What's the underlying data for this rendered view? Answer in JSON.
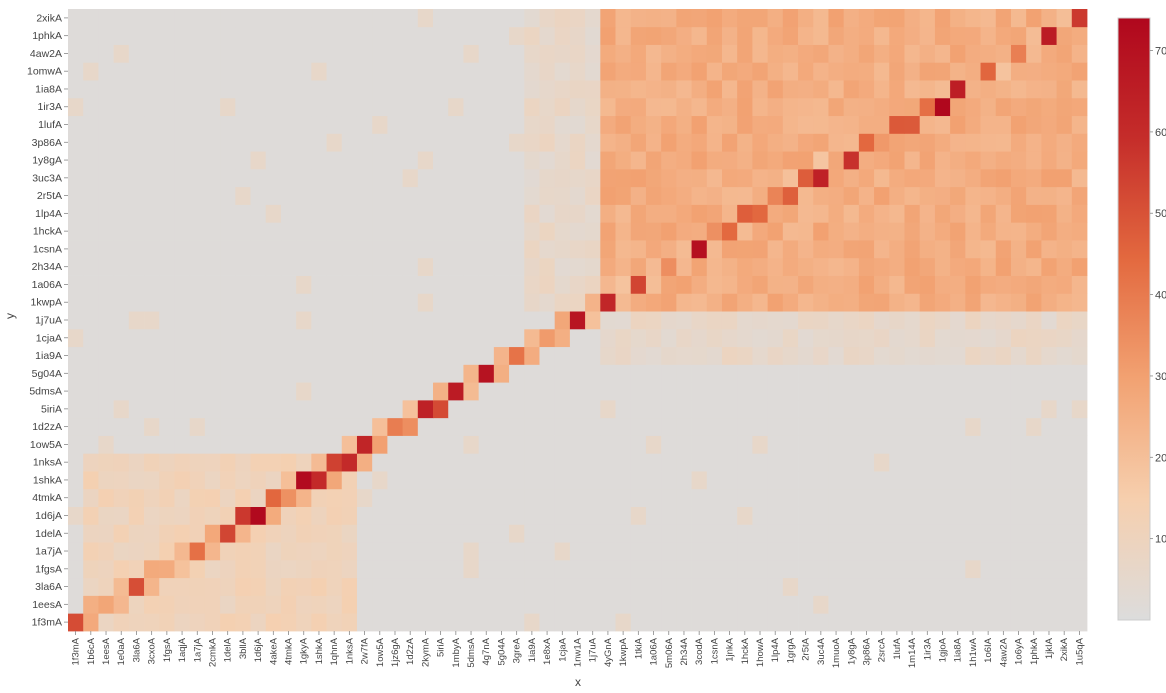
{
  "chart_data": {
    "type": "heatmap",
    "title": "",
    "xlabel": "x",
    "ylabel": "y",
    "x_categories": [
      "1f3mA",
      "1b6cA",
      "1eesA",
      "1e0aA",
      "3la6A",
      "3cxoA",
      "1fgsA",
      "1aqjA",
      "1a7jA",
      "2cmkA",
      "1delA",
      "3bllA",
      "1d6jA",
      "4akeA",
      "4tmkA",
      "1gkyA",
      "1shkA",
      "1qhnA",
      "1nksA",
      "2w7fA",
      "1ow5A",
      "1jz6gA",
      "1d2zA",
      "2kymA",
      "5iriA",
      "1mbyA",
      "5dmsA",
      "4g7nA",
      "5g04A",
      "3greA",
      "1ia9A",
      "1e8xA",
      "1cjaA",
      "1nw1A",
      "1j7uA",
      "4yGnA",
      "1kwpA",
      "1tkiA",
      "1a06A",
      "5m06A",
      "2h34A",
      "3codA",
      "1csnA",
      "1jnkA",
      "1hckA",
      "1howA",
      "1lp4A",
      "1grgA",
      "2r5tA",
      "3uc4A",
      "1muoA",
      "1y8gA",
      "3p86A",
      "2srcA",
      "1lufA",
      "1m14A",
      "1ir3A",
      "1gjoA",
      "1ia8A",
      "1h1wA",
      "1o6IA",
      "4aw2A",
      "1o6yA",
      "1phkA",
      "1jkIA",
      "2xikA",
      "1u5qA"
    ],
    "y_categories": [
      "1f3mA",
      "1eesA",
      "3la6A",
      "1fgsA",
      "1a7jA",
      "1delA",
      "1d6jA",
      "4tmkA",
      "1shkA",
      "1nksA",
      "1ow5A",
      "1d2zA",
      "5iriA",
      "5dmsA",
      "5g04A",
      "1ia9A",
      "1cjaA",
      "1j7uA",
      "1kwpA",
      "1a06A",
      "2h34A",
      "1csnA",
      "1hckA",
      "1lp4A",
      "2r5tA",
      "3uc3A",
      "1y8gA",
      "3p86A",
      "1lufA",
      "1ir3A",
      "1ia8A",
      "1omwA",
      "4aw2A",
      "1phkA",
      "2xikA"
    ],
    "colorscale": {
      "min": 0,
      "max": 74,
      "ticks": [
        10,
        20,
        30,
        40,
        50,
        60,
        70
      ],
      "stops": [
        "#dcdcdc",
        "#f6cfae",
        "#f2a272",
        "#e3693f",
        "#c52d2a",
        "#b0071d"
      ]
    },
    "value_summary": {
      "background": 1,
      "diagonal_range": [
        25,
        74
      ],
      "block_lower_left": {
        "x_range": [
          "1b6cA",
          "1nksA"
        ],
        "y_range": [
          "1f3mA",
          "1nksA"
        ],
        "value": 11
      },
      "block_upper_right": {
        "x_range": [
          "4yGnA",
          "1u5qA"
        ],
        "y_range": [
          "1kwpA",
          "2xikA"
        ],
        "value": 26
      },
      "band_cols": {
        "x_range": [
          "1ia9A",
          "1j7uA"
        ],
        "value": 6
      },
      "band_rows": {
        "y_range": [
          "1ia9A",
          "1j7uA"
        ],
        "value": 6
      }
    }
  }
}
